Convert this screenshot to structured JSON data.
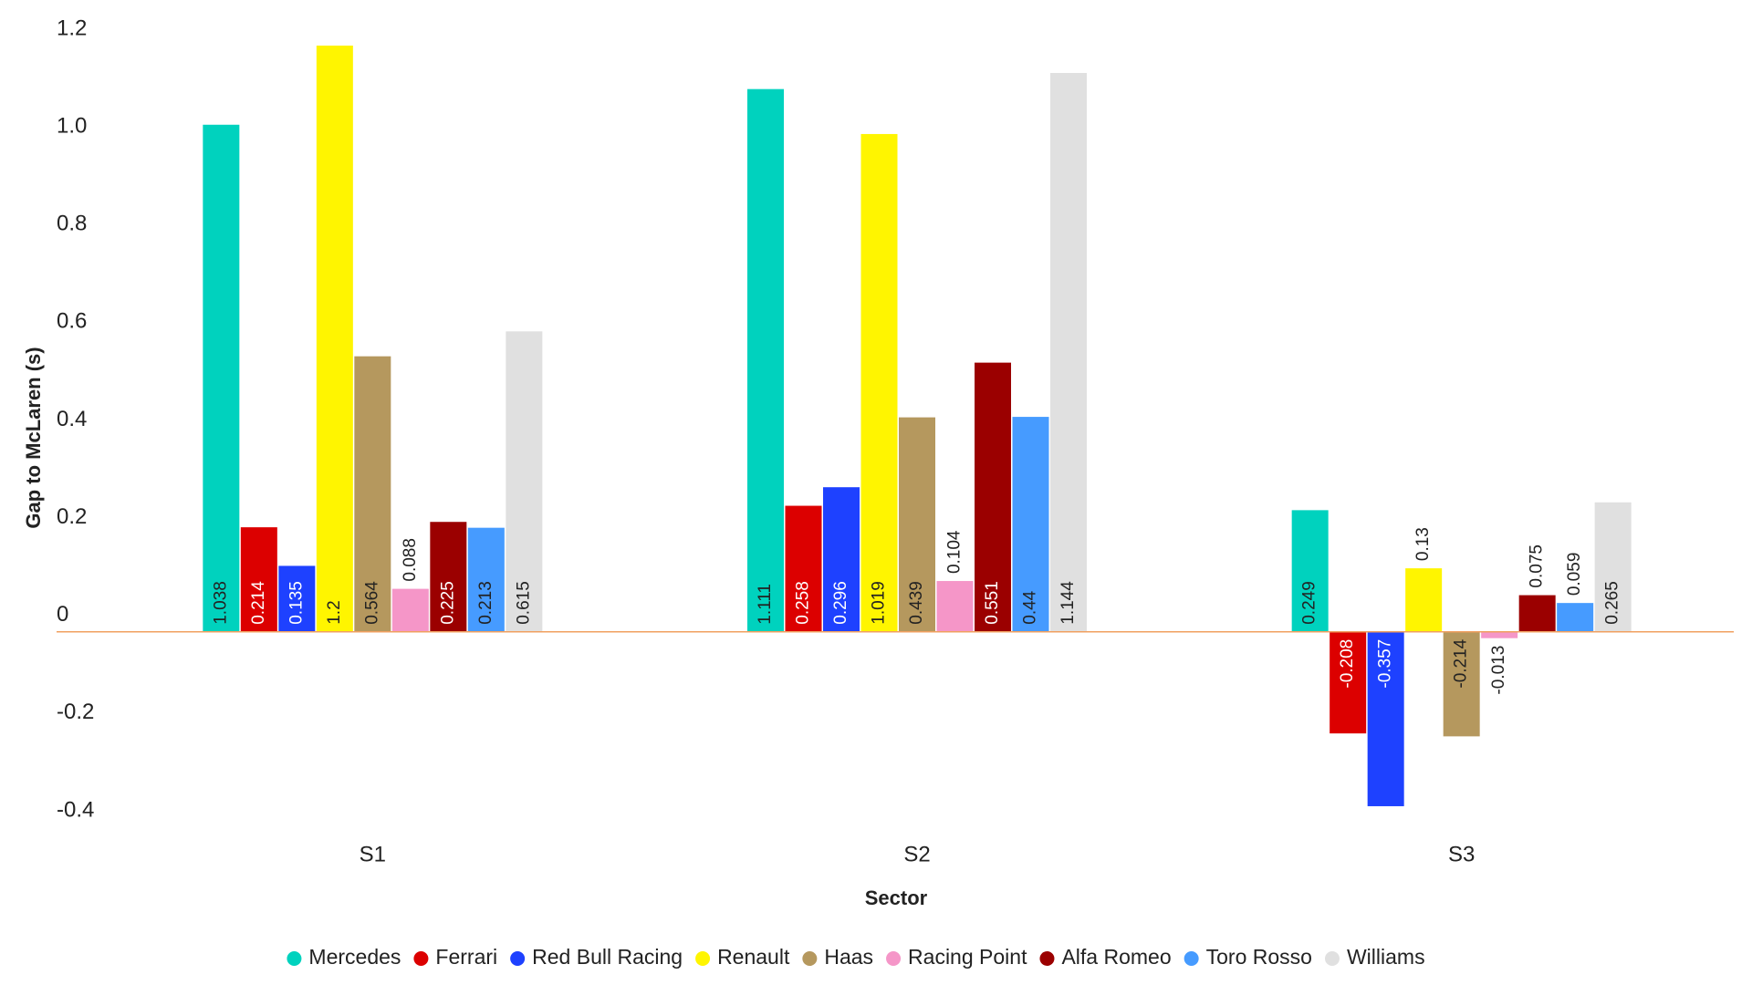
{
  "chart_data": {
    "type": "bar",
    "y_label": "Gap to McLaren (s)",
    "x_label": "Sector",
    "categories": [
      "S1",
      "S2",
      "S3"
    ],
    "series": [
      {
        "name": "Mercedes",
        "color": "#00d2be",
        "values": [
          1.038,
          1.111,
          0.249
        ]
      },
      {
        "name": "Ferrari",
        "color": "#dc0000",
        "values": [
          0.214,
          0.258,
          -0.208
        ]
      },
      {
        "name": "Red Bull Racing",
        "color": "#1e41ff",
        "values": [
          0.135,
          0.296,
          -0.357
        ]
      },
      {
        "name": "Renault",
        "color": "#fff500",
        "values": [
          1.2,
          1.019,
          0.13
        ]
      },
      {
        "name": "Haas",
        "color": "#b5985e",
        "values": [
          0.564,
          0.439,
          -0.214
        ]
      },
      {
        "name": "Racing Point",
        "color": "#f596c8",
        "values": [
          0.088,
          0.104,
          -0.013
        ]
      },
      {
        "name": "Alfa Romeo",
        "color": "#9b0000",
        "values": [
          0.225,
          0.551,
          0.075
        ]
      },
      {
        "name": "Toro Rosso",
        "color": "#469bff",
        "values": [
          0.213,
          0.44,
          0.059
        ]
      },
      {
        "name": "Williams",
        "color": "#e0e0e0",
        "values": [
          0.615,
          1.144,
          0.265
        ]
      }
    ],
    "ylim": [
      -0.4,
      1.2
    ],
    "yticks": [
      1.2,
      {
        "value": 1,
        "label": "1.0"
      },
      0.8,
      0.6,
      0.4,
      0.2,
      0,
      -0.2,
      -0.4
    ],
    "grid": false,
    "legend": "bottom"
  }
}
